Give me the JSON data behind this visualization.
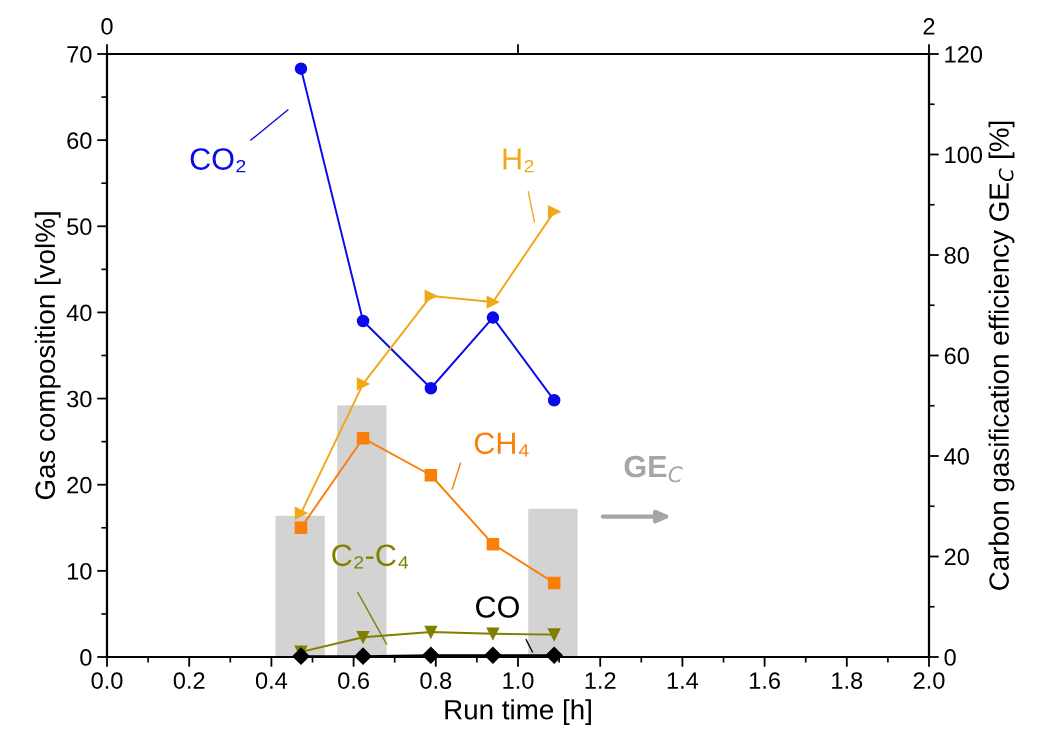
{
  "chart_data": {
    "type": "line",
    "xlabel": "Run time [h]",
    "ylabel": "Gas composition [vol%]",
    "y2label": "Carbon gasification efficiency GE$_{C}$ [%]",
    "x": [
      0.472,
      0.623,
      0.788,
      0.939,
      1.088
    ],
    "xlim": [
      0,
      2
    ],
    "xticks": [
      {
        "value": 0,
        "label": "0.0"
      },
      {
        "value": 0.2,
        "label": "0.2"
      },
      {
        "value": 0.4,
        "label": "0.4"
      },
      {
        "value": 0.6,
        "label": "0.6"
      },
      {
        "value": 0.8,
        "label": "0.8"
      },
      {
        "value": 1,
        "label": "1.0"
      },
      {
        "value": 1.2,
        "label": "1.2"
      },
      {
        "value": 1.4,
        "label": "1.4"
      },
      {
        "value": 1.6,
        "label": "1.6"
      },
      {
        "value": 1.8,
        "label": "1.8"
      },
      {
        "value": 2,
        "label": "2.0"
      }
    ],
    "x2lim": [
      0,
      2
    ],
    "x2ticks": [
      0,
      {
        "value": 1,
        "label": null
      },
      2
    ],
    "ylim": [
      0,
      70
    ],
    "yticks": [
      0,
      10,
      20,
      30,
      40,
      50,
      60,
      70
    ],
    "y2lim": [
      0,
      120
    ],
    "y2ticks": [
      0,
      20,
      40,
      60,
      80,
      100,
      120
    ],
    "grid": false,
    "series": [
      {
        "name": "CO₂",
        "color": "#0a0aeb",
        "marker": "circle",
        "values": [
          68.3,
          39.0,
          31.2,
          39.4,
          29.8
        ]
      },
      {
        "name": "H₂",
        "color": "#f0a818",
        "marker": "triangle",
        "values": [
          16.7,
          31.7,
          41.9,
          41.2,
          51.7
        ]
      },
      {
        "name": "CH₄",
        "color": "#fa7f0a",
        "marker": "square",
        "values": [
          15.0,
          25.4,
          21.1,
          13.1,
          8.6
        ]
      },
      {
        "name": "C₂-C₄",
        "color": "#7f7f00",
        "marker": "triangle_down",
        "values": [
          0.6,
          2.3,
          2.9,
          2.7,
          2.6
        ]
      },
      {
        "name": "CO",
        "color": "#000000",
        "marker": "diamond",
        "values": [
          0.1,
          0.1,
          0.2,
          0.2,
          0.2
        ]
      },
      {
        "name": "GE$_{C}$",
        "type": "bar",
        "axis": "y2",
        "color": "#d3d3d3",
        "x": [
          0.47,
          0.62,
          1.085
        ],
        "values": [
          28.1,
          50.1,
          29.5
        ]
      }
    ]
  }
}
